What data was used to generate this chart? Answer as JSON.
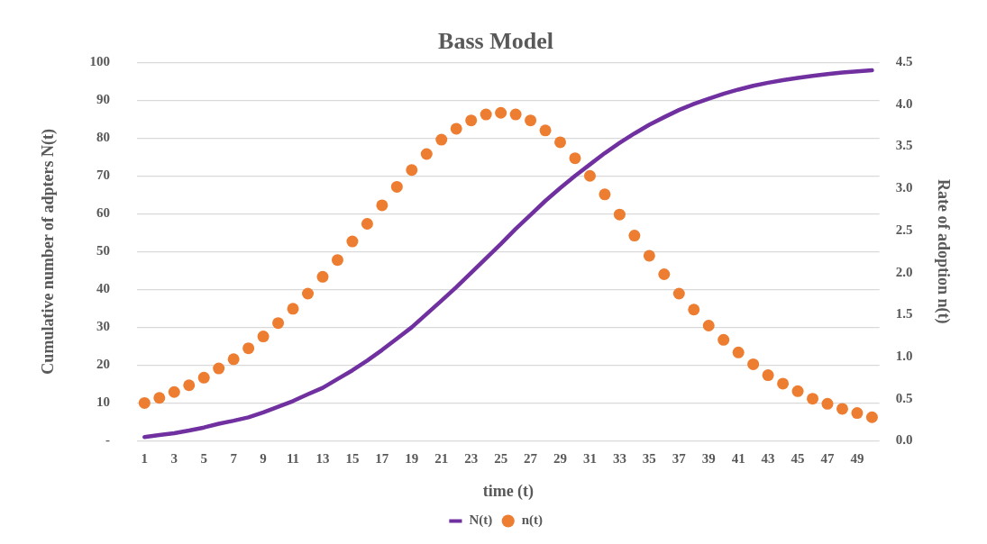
{
  "chart_data": {
    "type": "line",
    "title": "Bass Model",
    "xlabel": "time (t)",
    "ylabel": "Cumulative number of adpters N(t)",
    "y2label": "Rate of adoption n(t)",
    "x": [
      1,
      2,
      3,
      4,
      5,
      6,
      7,
      8,
      9,
      10,
      11,
      12,
      13,
      14,
      15,
      16,
      17,
      18,
      19,
      20,
      21,
      22,
      23,
      24,
      25,
      26,
      27,
      28,
      29,
      30,
      31,
      32,
      33,
      34,
      35,
      36,
      37,
      38,
      39,
      40,
      41,
      42,
      43,
      44,
      45,
      46,
      47,
      48,
      49,
      50
    ],
    "xlim": [
      0.5,
      50.5
    ],
    "xticks": [
      1,
      3,
      5,
      7,
      9,
      11,
      13,
      15,
      17,
      19,
      21,
      23,
      25,
      27,
      29,
      31,
      33,
      35,
      37,
      39,
      41,
      43,
      45,
      47,
      49
    ],
    "ylim": [
      0,
      100
    ],
    "yticks": [
      {
        "value": 0,
        "label": "-"
      },
      10,
      20,
      30,
      40,
      50,
      60,
      70,
      80,
      90,
      100
    ],
    "y2lim": [
      0,
      4.5
    ],
    "y2ticks": [
      {
        "value": 0,
        "label": "0.0"
      },
      {
        "value": 0.5,
        "label": "0.5"
      },
      {
        "value": 1,
        "label": "1.0"
      },
      {
        "value": 1.5,
        "label": "1.5"
      },
      {
        "value": 2,
        "label": "2.0"
      },
      {
        "value": 2.5,
        "label": "2.5"
      },
      {
        "value": 3,
        "label": "3.0"
      },
      {
        "value": 3.5,
        "label": "3.5"
      },
      {
        "value": 4,
        "label": "4.0"
      },
      {
        "value": 4.5,
        "label": "4.5"
      }
    ],
    "grid": "y",
    "legend": "bottom",
    "series": [
      {
        "name": "N(t)",
        "type": "line",
        "marker": "none",
        "color": "#7030a0",
        "values": [
          1,
          1.5,
          2,
          2.7,
          3.5,
          4.5,
          5.3,
          6.2,
          7.5,
          9,
          10.5,
          12.3,
          14,
          16.3,
          18.6,
          21.2,
          24,
          27,
          30,
          33.5,
          37,
          40.6,
          44.4,
          48.2,
          52,
          56,
          59.7,
          63.4,
          66.8,
          70,
          73,
          76,
          78.7,
          81.2,
          83.5,
          85.5,
          87.4,
          89,
          90.4,
          91.7,
          92.8,
          93.8,
          94.6,
          95.3,
          95.9,
          96.4,
          96.9,
          97.3,
          97.6,
          97.9
        ]
      },
      {
        "name": "n(t)",
        "type": "scatter",
        "axis": "y2",
        "marker": "circle",
        "color": "#ed7d31",
        "values": [
          0.45,
          0.51,
          0.58,
          0.66,
          0.75,
          0.86,
          0.97,
          1.1,
          1.24,
          1.4,
          1.57,
          1.75,
          1.95,
          2.15,
          2.37,
          2.58,
          2.8,
          3.02,
          3.22,
          3.41,
          3.58,
          3.71,
          3.81,
          3.88,
          3.9,
          3.88,
          3.81,
          3.69,
          3.55,
          3.36,
          3.15,
          2.93,
          2.69,
          2.44,
          2.2,
          1.98,
          1.75,
          1.56,
          1.37,
          1.2,
          1.05,
          0.91,
          0.78,
          0.68,
          0.59,
          0.5,
          0.44,
          0.38,
          0.33,
          0.28
        ]
      }
    ]
  }
}
